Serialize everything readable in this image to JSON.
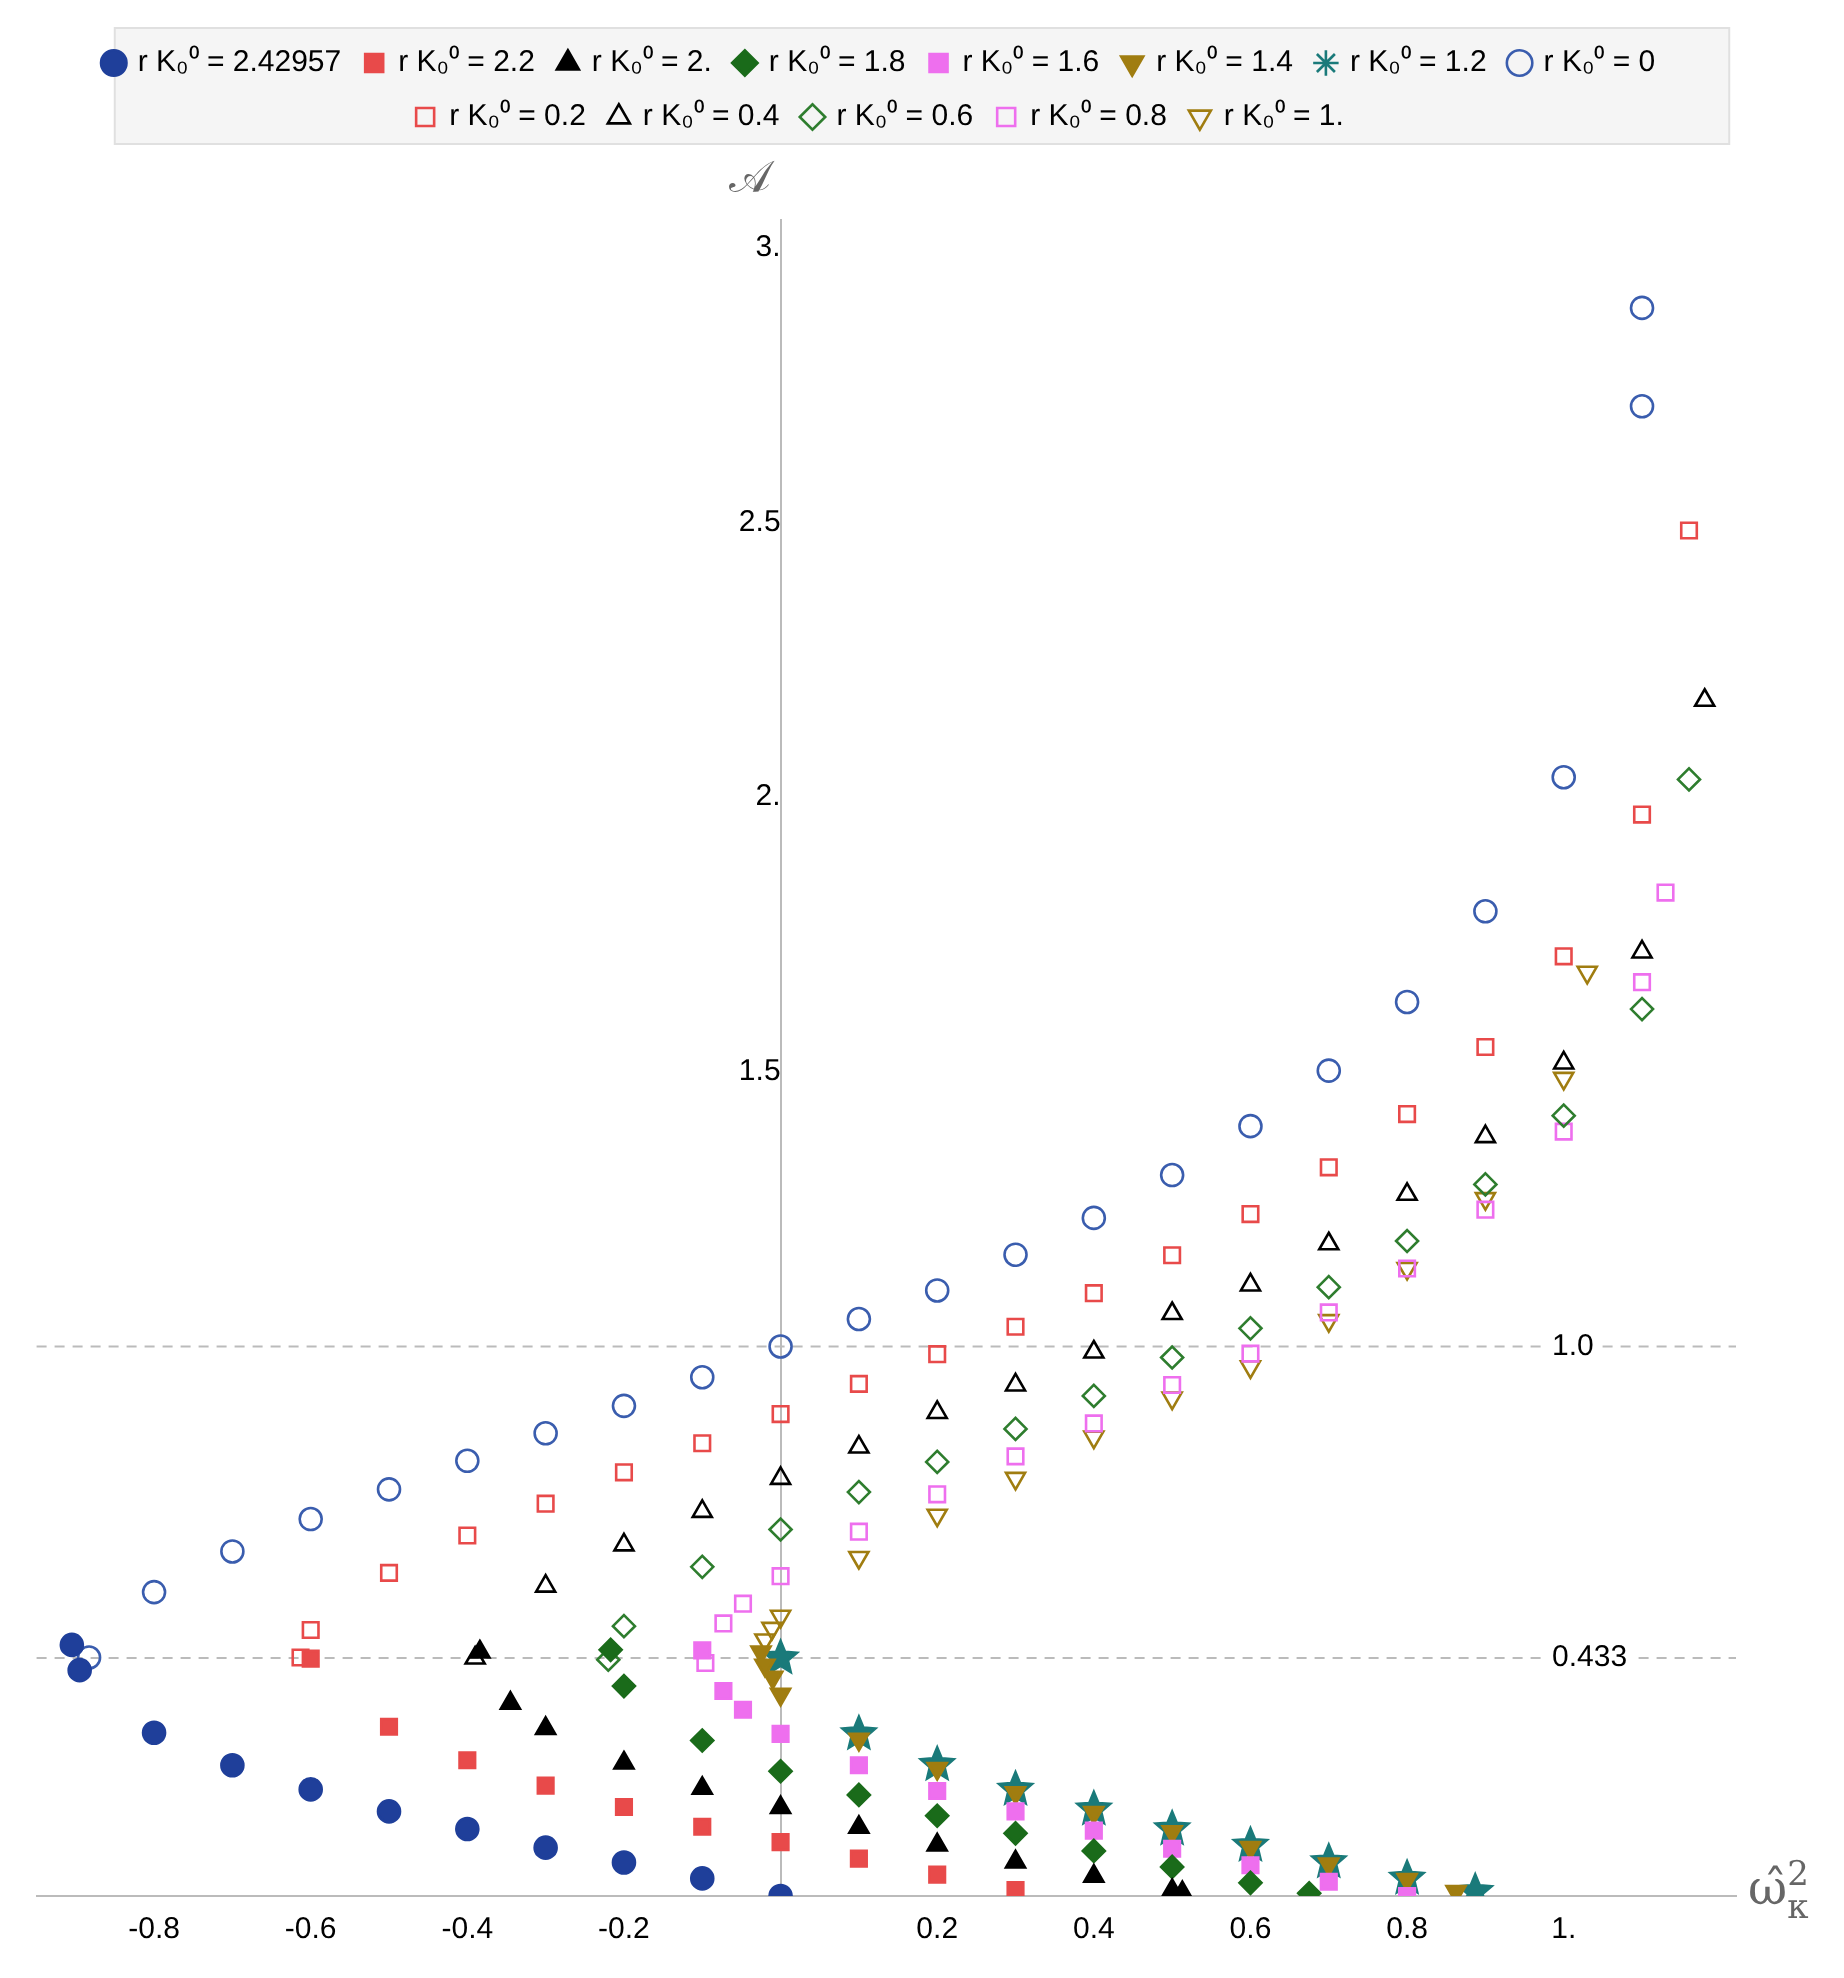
{
  "chart_data": {
    "type": "scatter",
    "xlabel": "ω̂$^{2}$$_{κ}$",
    "ylabel": "𝒜",
    "legend": "top",
    "grid": false,
    "xlim": [
      -0.95,
      1.22
    ],
    "ylim": [
      0,
      3.05
    ],
    "xticks": [
      -0.8,
      -0.6,
      -0.4,
      -0.2,
      0.2,
      0.4,
      0.6,
      0.8,
      {
        "value": 1,
        "label": "1."
      }
    ],
    "yticks": [
      1.5,
      {
        "value": 2,
        "label": "2."
      },
      2.5,
      {
        "value": 3,
        "label": "3."
      }
    ],
    "ref_lines": [
      {
        "axis": "y",
        "value": 1.0,
        "label": "1.0",
        "color": "#bbbbbb",
        "line_style": "dashed"
      },
      {
        "axis": "y",
        "value": 0.433,
        "label": "0.433",
        "color": "#bbbbbb",
        "line_style": "dashed"
      }
    ],
    "series": [
      {
        "name": "r K₀⁰ = 2.42957",
        "color": "#1f3f9a",
        "marker": "circle",
        "x": [
          -0.905,
          -0.895,
          -0.8,
          -0.7,
          -0.6,
          -0.5,
          -0.4,
          -0.3,
          -0.2,
          -0.1,
          0
        ],
        "values": [
          0.457,
          0.411,
          0.297,
          0.238,
          0.194,
          0.154,
          0.122,
          0.088,
          0.061,
          0.032,
          0
        ]
      },
      {
        "name": "r K₀⁰ = 2.2",
        "color": "#e84a4a",
        "marker": "square",
        "x": [
          -0.6,
          -0.5,
          -0.4,
          -0.3,
          -0.2,
          -0.1,
          0,
          0.1,
          0.2,
          0.3
        ],
        "values": [
          0.432,
          0.308,
          0.247,
          0.201,
          0.162,
          0.126,
          0.098,
          0.068,
          0.039,
          0.011
        ]
      },
      {
        "name": "r K₀⁰ = 2.",
        "color": "#000000",
        "marker": "triangle",
        "x": [
          -0.384,
          -0.345,
          -0.3,
          -0.2,
          -0.1,
          0,
          0.1,
          0.2,
          0.3,
          0.4,
          0.5,
          0.513
        ],
        "values": [
          0.444,
          0.351,
          0.305,
          0.242,
          0.196,
          0.161,
          0.125,
          0.093,
          0.062,
          0.036,
          0.01,
          0.006
        ]
      },
      {
        "name": "r K₀⁰ = 1.8",
        "color": "#1a6b1a",
        "marker": "diamond",
        "x": [
          -0.217,
          -0.2,
          -0.1,
          0,
          0.1,
          0.2,
          0.3,
          0.4,
          0.5,
          0.6,
          0.675
        ],
        "values": [
          0.448,
          0.382,
          0.283,
          0.227,
          0.184,
          0.146,
          0.114,
          0.082,
          0.053,
          0.024,
          0.005
        ]
      },
      {
        "name": "r K₀⁰ = 1.6",
        "color": "#ee6fee",
        "marker": "square",
        "x": [
          -0.1,
          -0.073,
          -0.048,
          0,
          0.1,
          0.2,
          0.3,
          0.4,
          0.5,
          0.6,
          0.7,
          0.8
        ],
        "values": [
          0.447,
          0.373,
          0.339,
          0.295,
          0.238,
          0.191,
          0.154,
          0.119,
          0.086,
          0.056,
          0.026,
          0
        ]
      },
      {
        "name": "r K₀⁰ = 1.4",
        "color": "#a07d10",
        "marker": "triangle-down",
        "x": [
          -0.025,
          -0.02,
          -0.01,
          0,
          0.1,
          0.2,
          0.3,
          0.4,
          0.5,
          0.6,
          0.7,
          0.8,
          0.8625
        ],
        "values": [
          0.444,
          0.42,
          0.398,
          0.367,
          0.285,
          0.232,
          0.188,
          0.152,
          0.117,
          0.088,
          0.058,
          0.03,
          0.008
        ]
      },
      {
        "name": "r K₀⁰ = 1.2",
        "color": "#1a7a7a",
        "marker": "star",
        "x": [
          0,
          0.1,
          0.2,
          0.3,
          0.4,
          0.5,
          0.6,
          0.7,
          0.8,
          0.887
        ],
        "values": [
          0.433,
          0.295,
          0.239,
          0.194,
          0.158,
          0.122,
          0.092,
          0.062,
          0.032,
          0.008
        ]
      },
      {
        "name": "r K₀⁰ = 0",
        "color": "#3a5dae",
        "marker": "circle-open",
        "x": [
          -0.883,
          -0.8,
          -0.7,
          -0.6,
          -0.5,
          -0.4,
          -0.3,
          -0.2,
          -0.1,
          0,
          0.1,
          0.2,
          0.3,
          0.4,
          0.5,
          0.6,
          0.7,
          0.8,
          0.9,
          1.0,
          1.1,
          1.1
        ],
        "values": [
          0.434,
          0.553,
          0.627,
          0.686,
          0.74,
          0.792,
          0.842,
          0.892,
          0.944,
          1.0,
          1.05,
          1.102,
          1.167,
          1.234,
          1.312,
          1.401,
          1.502,
          1.627,
          1.792,
          2.036,
          2.711,
          2.89
        ]
      },
      {
        "name": "r K₀⁰ = 0.2",
        "color": "#e84a4a",
        "marker": "square-open",
        "x": [
          -0.613,
          -0.6,
          -0.5,
          -0.4,
          -0.3,
          -0.2,
          -0.1,
          0,
          0.1,
          0.2,
          0.3,
          0.4,
          0.5,
          0.6,
          0.7,
          0.8,
          0.9,
          1.0,
          1.1,
          1.16
        ],
        "values": [
          0.434,
          0.484,
          0.588,
          0.656,
          0.714,
          0.771,
          0.824,
          0.877,
          0.932,
          0.986,
          1.036,
          1.097,
          1.166,
          1.241,
          1.326,
          1.423,
          1.545,
          1.71,
          1.968,
          2.485
        ]
      },
      {
        "name": "r K₀⁰ = 0.4",
        "color": "#000000",
        "marker": "triangle-open",
        "x": [
          -0.39,
          -0.3,
          -0.2,
          -0.1,
          0,
          0.1,
          0.2,
          0.3,
          0.4,
          0.5,
          0.6,
          0.7,
          0.8,
          0.9,
          1.0,
          1.1,
          1.18
        ],
        "values": [
          0.433,
          0.564,
          0.639,
          0.7,
          0.76,
          0.817,
          0.88,
          0.93,
          0.99,
          1.06,
          1.112,
          1.187,
          1.277,
          1.382,
          1.516,
          1.718,
          2.176
        ]
      },
      {
        "name": "r K₀⁰ = 0.6",
        "color": "#2e7d2e",
        "marker": "diamond-open",
        "x": [
          -0.22,
          -0.2,
          -0.1,
          0,
          0.1,
          0.2,
          0.3,
          0.4,
          0.5,
          0.6,
          0.7,
          0.8,
          0.9,
          1.0,
          1.1,
          1.16
        ],
        "values": [
          0.43,
          0.491,
          0.599,
          0.667,
          0.735,
          0.79,
          0.85,
          0.91,
          0.98,
          1.033,
          1.108,
          1.192,
          1.295,
          1.42,
          1.614,
          2.032
        ]
      },
      {
        "name": "r K₀⁰ = 0.8",
        "color": "#ee6fee",
        "marker": "square-open",
        "x": [
          -0.096,
          -0.073,
          -0.048,
          0,
          0.1,
          0.2,
          0.3,
          0.4,
          0.5,
          0.6,
          0.7,
          0.8,
          0.9,
          1.0,
          1.1,
          1.13
        ],
        "values": [
          0.424,
          0.496,
          0.532,
          0.582,
          0.663,
          0.731,
          0.8,
          0.86,
          0.93,
          0.987,
          1.062,
          1.142,
          1.249,
          1.391,
          1.663,
          1.826
        ]
      },
      {
        "name": "r K₀⁰ = 1.",
        "color": "#a07d10",
        "marker": "triangle-down-open",
        "x": [
          -0.02,
          -0.011,
          0,
          0.1,
          0.2,
          0.3,
          0.4,
          0.5,
          0.6,
          0.7,
          0.8,
          0.9,
          1.0,
          1.03
        ],
        "values": [
          0.466,
          0.487,
          0.509,
          0.616,
          0.693,
          0.76,
          0.835,
          0.906,
          0.963,
          1.047,
          1.142,
          1.269,
          1.488,
          1.681
        ]
      }
    ]
  }
}
